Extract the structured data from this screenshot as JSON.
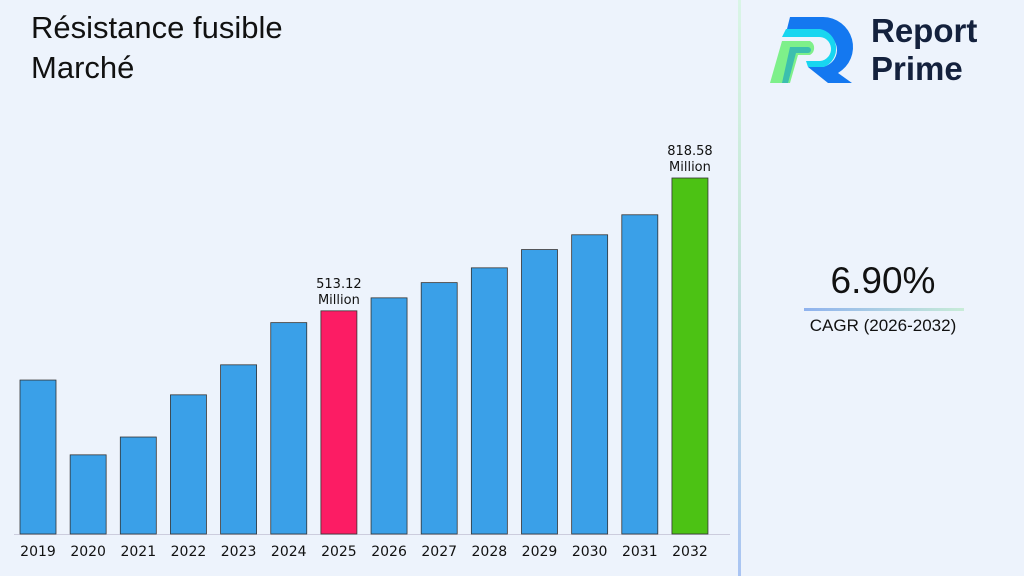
{
  "title_line1": "Résistance fusible",
  "title_line2": "Marché",
  "logo": {
    "line1": "Report",
    "line2": "Prime"
  },
  "cagr": {
    "value": "6.90%",
    "label": "CAGR (2026-2032)"
  },
  "colors": {
    "default": "#3aa0e8",
    "highlight_2025": "#fc1c64",
    "highlight_2032": "#4cc214"
  },
  "chart_data": {
    "type": "bar",
    "categories": [
      "2019",
      "2020",
      "2021",
      "2022",
      "2023",
      "2024",
      "2025",
      "2026",
      "2027",
      "2028",
      "2029",
      "2030",
      "2031",
      "2032"
    ],
    "values": [
      354,
      182,
      223,
      320,
      389,
      486,
      513.12,
      543,
      578,
      612,
      654,
      688,
      734,
      818.58
    ],
    "data_labels": {
      "2025": [
        "513.12",
        "Million"
      ],
      "2032": [
        "818.58",
        "Million"
      ]
    },
    "ylim": [
      0,
      830
    ],
    "grid": false
  }
}
